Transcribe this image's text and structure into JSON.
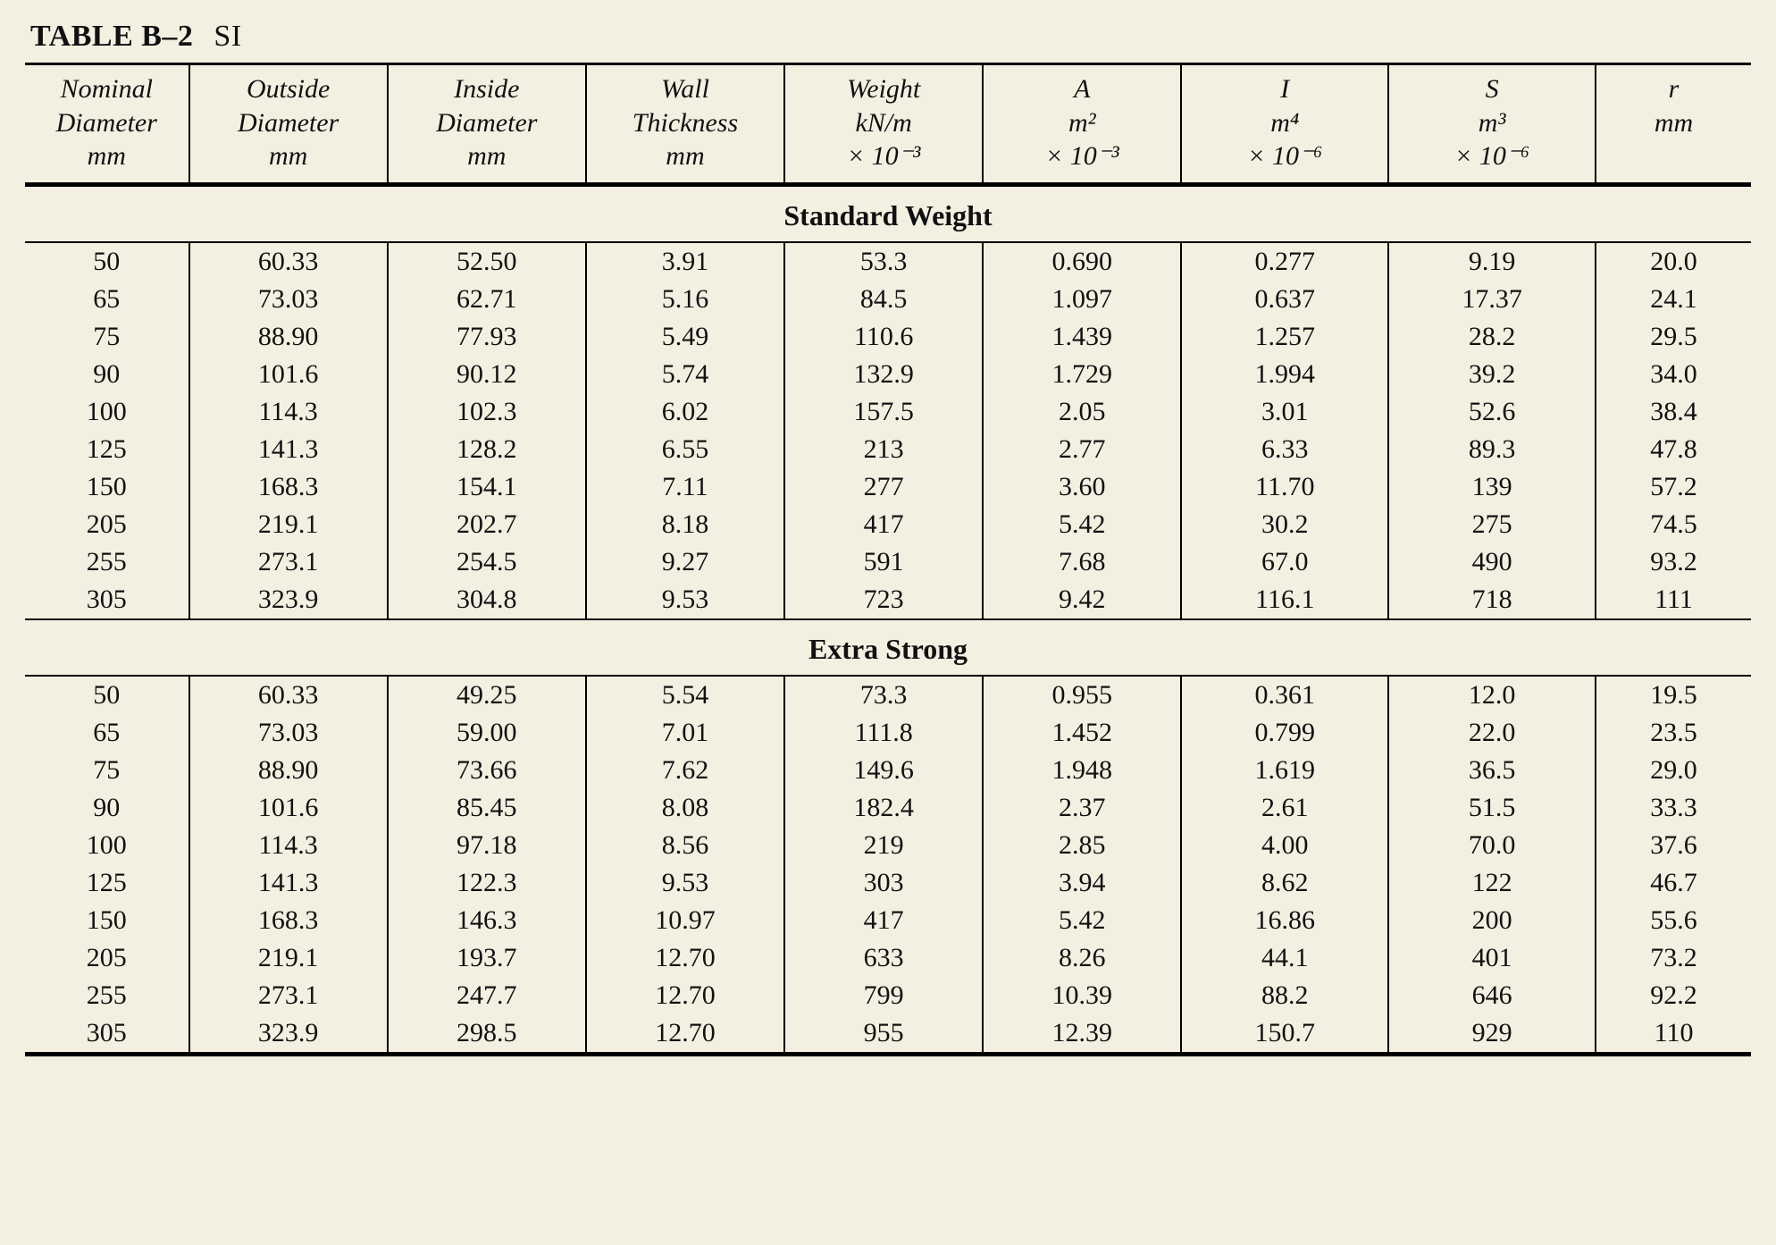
{
  "title_label": "TABLE B–2",
  "title_unit": "SI",
  "columns": [
    {
      "lines": [
        "Nominal",
        "Diameter",
        "mm"
      ]
    },
    {
      "lines": [
        "Outside",
        "Diameter",
        "mm"
      ]
    },
    {
      "lines": [
        "Inside",
        "Diameter",
        "mm"
      ]
    },
    {
      "lines": [
        "Wall",
        "Thickness",
        "mm"
      ]
    },
    {
      "lines": [
        "Weight",
        "kN/m",
        "× 10⁻³"
      ]
    },
    {
      "lines": [
        "A",
        "m²",
        "× 10⁻³"
      ]
    },
    {
      "lines": [
        "I",
        "m⁴",
        "× 10⁻⁶"
      ]
    },
    {
      "lines": [
        "S",
        "m³",
        "× 10⁻⁶"
      ]
    },
    {
      "lines": [
        "r",
        "mm"
      ]
    }
  ],
  "column_widths_pct": [
    9.5,
    11.5,
    11.5,
    11.5,
    11.5,
    11.5,
    12.0,
    12.0,
    9.0
  ],
  "sections": [
    {
      "heading": "Standard Weight",
      "rows": [
        [
          "50",
          "60.33",
          "52.50",
          "3.91",
          "53.3",
          "0.690",
          "0.277",
          "9.19",
          "20.0"
        ],
        [
          "65",
          "73.03",
          "62.71",
          "5.16",
          "84.5",
          "1.097",
          "0.637",
          "17.37",
          "24.1"
        ],
        [
          "75",
          "88.90",
          "77.93",
          "5.49",
          "110.6",
          "1.439",
          "1.257",
          "28.2",
          "29.5"
        ],
        [
          "90",
          "101.6",
          "90.12",
          "5.74",
          "132.9",
          "1.729",
          "1.994",
          "39.2",
          "34.0"
        ],
        [
          "100",
          "114.3",
          "102.3",
          "6.02",
          "157.5",
          "2.05",
          "3.01",
          "52.6",
          "38.4"
        ],
        [
          "125",
          "141.3",
          "128.2",
          "6.55",
          "213",
          "2.77",
          "6.33",
          "89.3",
          "47.8"
        ],
        [
          "150",
          "168.3",
          "154.1",
          "7.11",
          "277",
          "3.60",
          "11.70",
          "139",
          "57.2"
        ],
        [
          "205",
          "219.1",
          "202.7",
          "8.18",
          "417",
          "5.42",
          "30.2",
          "275",
          "74.5"
        ],
        [
          "255",
          "273.1",
          "254.5",
          "9.27",
          "591",
          "7.68",
          "67.0",
          "490",
          "93.2"
        ],
        [
          "305",
          "323.9",
          "304.8",
          "9.53",
          "723",
          "9.42",
          "116.1",
          "718",
          "111"
        ]
      ]
    },
    {
      "heading": "Extra Strong",
      "rows": [
        [
          "50",
          "60.33",
          "49.25",
          "5.54",
          "73.3",
          "0.955",
          "0.361",
          "12.0",
          "19.5"
        ],
        [
          "65",
          "73.03",
          "59.00",
          "7.01",
          "111.8",
          "1.452",
          "0.799",
          "22.0",
          "23.5"
        ],
        [
          "75",
          "88.90",
          "73.66",
          "7.62",
          "149.6",
          "1.948",
          "1.619",
          "36.5",
          "29.0"
        ],
        [
          "90",
          "101.6",
          "85.45",
          "8.08",
          "182.4",
          "2.37",
          "2.61",
          "51.5",
          "33.3"
        ],
        [
          "100",
          "114.3",
          "97.18",
          "8.56",
          "219",
          "2.85",
          "4.00",
          "70.0",
          "37.6"
        ],
        [
          "125",
          "141.3",
          "122.3",
          "9.53",
          "303",
          "3.94",
          "8.62",
          "122",
          "46.7"
        ],
        [
          "150",
          "168.3",
          "146.3",
          "10.97",
          "417",
          "5.42",
          "16.86",
          "200",
          "55.6"
        ],
        [
          "205",
          "219.1",
          "193.7",
          "12.70",
          "633",
          "8.26",
          "44.1",
          "401",
          "73.2"
        ],
        [
          "255",
          "273.1",
          "247.7",
          "12.70",
          "799",
          "10.39",
          "88.2",
          "646",
          "92.2"
        ],
        [
          "305",
          "323.9",
          "298.5",
          "12.70",
          "955",
          "12.39",
          "150.7",
          "929",
          "110"
        ]
      ]
    }
  ],
  "style": {
    "background_color": "#f3f0e2",
    "text_color": "#111111",
    "rule_color": "#000000",
    "header_font_style": "italic",
    "header_font_size_pt": 22,
    "body_font_size_pt": 22,
    "section_heading_font_size_pt": 24,
    "font_family": "Times New Roman"
  }
}
